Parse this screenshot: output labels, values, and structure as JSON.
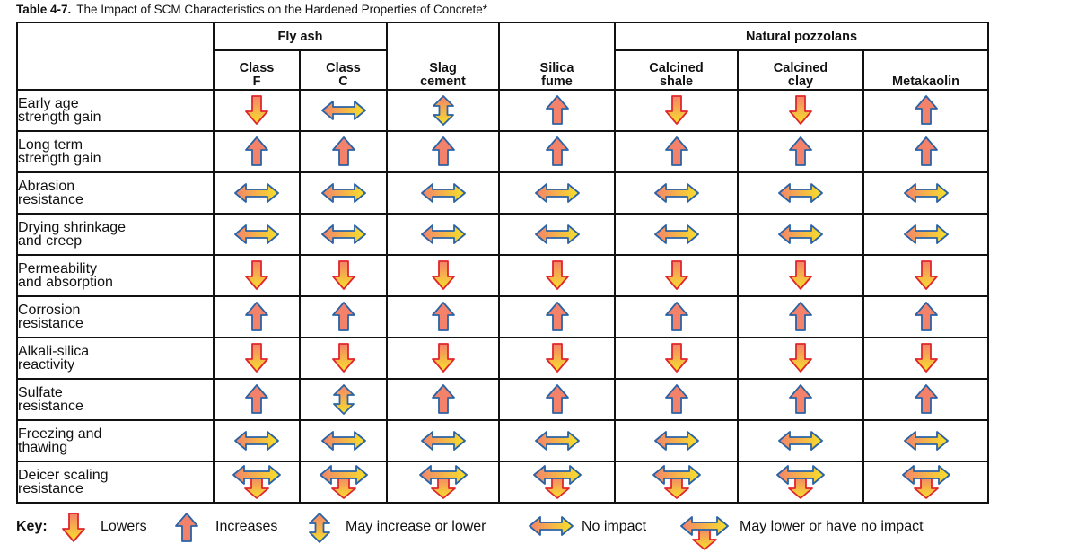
{
  "title": {
    "number": "Table 4-7.",
    "text": "The Impact of SCM Characteristics on the Hardened Properties of Concrete*"
  },
  "groups": [
    "Fly ash",
    "Natural pozzolans"
  ],
  "columns": [
    "Class\nF",
    "Class\nC",
    "Slag\ncement",
    "Silica\nfume",
    "Calcined\nshale",
    "Calcined\nclay",
    "Metakaolin"
  ],
  "rows": [
    {
      "label": "Early age\nstrength gain",
      "impacts": [
        "lowers",
        "no-impact",
        "increase-or-lower",
        "increases",
        "lowers",
        "lowers",
        "increases"
      ]
    },
    {
      "label": "Long term\nstrength gain",
      "impacts": [
        "increases",
        "increases",
        "increases",
        "increases",
        "increases",
        "increases",
        "increases"
      ]
    },
    {
      "label": "Abrasion\nresistance",
      "impacts": [
        "no-impact",
        "no-impact",
        "no-impact",
        "no-impact",
        "no-impact",
        "no-impact",
        "no-impact"
      ]
    },
    {
      "label": "Drying shrinkage\nand creep",
      "impacts": [
        "no-impact",
        "no-impact",
        "no-impact",
        "no-impact",
        "no-impact",
        "no-impact",
        "no-impact"
      ]
    },
    {
      "label": "Permeability\nand absorption",
      "impacts": [
        "lowers",
        "lowers",
        "lowers",
        "lowers",
        "lowers",
        "lowers",
        "lowers"
      ]
    },
    {
      "label": "Corrosion\nresistance",
      "impacts": [
        "increases",
        "increases",
        "increases",
        "increases",
        "increases",
        "increases",
        "increases"
      ]
    },
    {
      "label": "Alkali-silica\nreactivity",
      "impacts": [
        "lowers",
        "lowers",
        "lowers",
        "lowers",
        "lowers",
        "lowers",
        "lowers"
      ]
    },
    {
      "label": "Sulfate\nresistance",
      "impacts": [
        "increases",
        "increase-or-lower",
        "increases",
        "increases",
        "increases",
        "increases",
        "increases"
      ]
    },
    {
      "label": "Freezing and\nthawing",
      "impacts": [
        "no-impact",
        "no-impact",
        "no-impact",
        "no-impact",
        "no-impact",
        "no-impact",
        "no-impact"
      ]
    },
    {
      "label": "Deicer scaling\nresistance",
      "impacts": [
        "lower-or-no-impact",
        "lower-or-no-impact",
        "lower-or-no-impact",
        "lower-or-no-impact",
        "lower-or-no-impact",
        "lower-or-no-impact",
        "lower-or-no-impact"
      ]
    }
  ],
  "key": {
    "label": "Key:",
    "items": [
      {
        "icon": "lowers",
        "text": "Lowers"
      },
      {
        "icon": "increases",
        "text": "Increases"
      },
      {
        "icon": "increase-or-lower",
        "text": "May increase or lower"
      },
      {
        "icon": "no-impact",
        "text": "No impact"
      },
      {
        "icon": "lower-or-no-impact",
        "text": "May lower or have no impact"
      }
    ]
  },
  "colors": {
    "orange": "#f4826a",
    "yellow": "#f7e22a",
    "red_outline": "#e0262d",
    "blue_outline": "#2a63a6"
  }
}
